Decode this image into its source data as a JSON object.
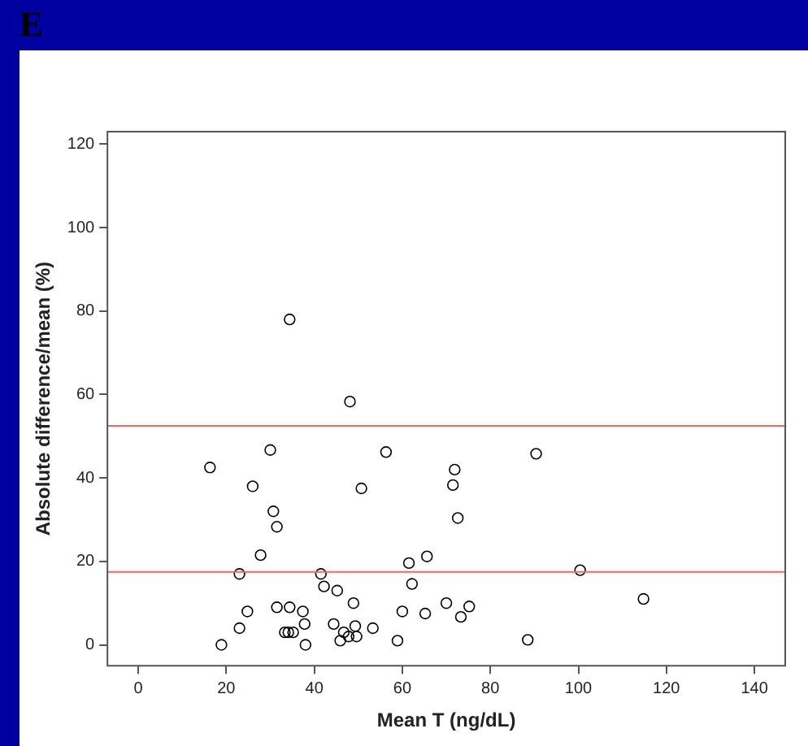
{
  "chart_data": {
    "type": "scatter",
    "title": "E",
    "xlabel": "Mean T (ng/dL)",
    "ylabel": "Absolute difference/mean (%)",
    "xlim": [
      -7,
      147
    ],
    "ylim": [
      -5,
      123
    ],
    "xticks": [
      0,
      20,
      40,
      60,
      80,
      100,
      120,
      140
    ],
    "yticks": [
      0,
      20,
      40,
      60,
      80,
      100,
      120
    ],
    "grid": false,
    "legend": false,
    "marker": "circle",
    "series": [
      {
        "color": "#000000",
        "x": [
          16.3,
          18.9,
          23,
          24.8,
          23,
          26,
          27.8,
          30,
          30.7,
          31.5,
          31.5,
          34.4,
          33.3,
          34.1,
          35.2,
          34.4,
          37.4,
          37.8,
          38,
          41.5,
          42.2,
          45.2,
          44.4,
          45.9,
          46.7,
          47.8,
          48.1,
          48.9,
          49.6,
          49.3,
          53.3,
          50.7,
          56.3,
          58.9,
          60,
          61.5,
          62.2,
          65.6,
          65.2,
          70,
          71.9,
          71.5,
          72.6,
          73.3,
          75.2,
          88.5,
          90.4,
          100.4,
          114.8
        ],
        "values": [
          42.5,
          0,
          4,
          8,
          17,
          38,
          21.5,
          46.7,
          32,
          28.3,
          9,
          9,
          3,
          3,
          3,
          78,
          8,
          5,
          0,
          17,
          14,
          13,
          5,
          1,
          3,
          2,
          58.3,
          10,
          2,
          4.5,
          4,
          37.5,
          46.2,
          1,
          8,
          19.6,
          14.6,
          21.2,
          7.5,
          10,
          42,
          38.3,
          30.4,
          6.7,
          9.2,
          1.2,
          45.8,
          17.9,
          11
        ]
      }
    ],
    "ref_lines": [
      {
        "axis": "y",
        "value": 52.5,
        "color": "#ff6060"
      },
      {
        "axis": "y",
        "value": 17.5,
        "color": "#ff6060"
      }
    ]
  }
}
